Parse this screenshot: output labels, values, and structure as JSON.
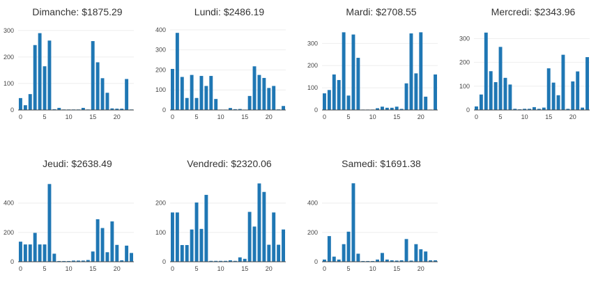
{
  "chart_data": [
    {
      "type": "bar",
      "title": "Dimanche: $1875.29",
      "x": [
        0,
        1,
        2,
        3,
        4,
        5,
        6,
        7,
        8,
        9,
        10,
        11,
        12,
        13,
        14,
        15,
        16,
        17,
        18,
        19,
        20,
        21,
        22,
        23
      ],
      "values": [
        45,
        18,
        60,
        245,
        290,
        165,
        262,
        3,
        8,
        2,
        2,
        2,
        2,
        8,
        2,
        260,
        180,
        120,
        65,
        6,
        5,
        5,
        117,
        2
      ],
      "ylim": [
        0,
        310
      ],
      "yticks": [
        0,
        100,
        200,
        300
      ],
      "xticks": [
        0,
        5,
        10,
        15,
        20
      ]
    },
    {
      "type": "bar",
      "title": "Lundi: $2486.19",
      "x": [
        0,
        1,
        2,
        3,
        4,
        5,
        6,
        7,
        8,
        9,
        10,
        11,
        12,
        13,
        14,
        15,
        16,
        17,
        18,
        19,
        20,
        21,
        22,
        23
      ],
      "values": [
        205,
        385,
        165,
        60,
        175,
        60,
        170,
        120,
        170,
        55,
        2,
        2,
        10,
        4,
        5,
        2,
        70,
        218,
        175,
        160,
        110,
        120,
        3,
        20
      ],
      "ylim": [
        0,
        410
      ],
      "yticks": [
        0,
        100,
        200,
        300,
        400
      ],
      "xticks": [
        0,
        5,
        10,
        15,
        20
      ]
    },
    {
      "type": "bar",
      "title": "Mardi: $2708.55",
      "x": [
        0,
        1,
        2,
        3,
        4,
        5,
        6,
        7,
        8,
        9,
        10,
        11,
        12,
        13,
        14,
        15,
        16,
        17,
        18,
        19,
        20,
        21,
        22,
        23
      ],
      "values": [
        75,
        90,
        160,
        135,
        350,
        65,
        340,
        235,
        2,
        2,
        2,
        8,
        15,
        10,
        10,
        15,
        5,
        120,
        345,
        165,
        350,
        60,
        2,
        160
      ],
      "ylim": [
        0,
        370
      ],
      "yticks": [
        0,
        100,
        200,
        300
      ],
      "xticks": [
        0,
        5,
        10,
        15,
        20
      ]
    },
    {
      "type": "bar",
      "title": "Mercredi: $2343.96",
      "x": [
        0,
        1,
        2,
        3,
        4,
        5,
        6,
        7,
        8,
        9,
        10,
        11,
        12,
        13,
        14,
        15,
        16,
        17,
        18,
        19,
        20,
        21,
        22,
        23
      ],
      "values": [
        15,
        65,
        325,
        163,
        117,
        265,
        135,
        107,
        5,
        3,
        5,
        5,
        12,
        5,
        10,
        175,
        115,
        62,
        232,
        5,
        120,
        162,
        10,
        222
      ],
      "ylim": [
        0,
        345
      ],
      "yticks": [
        0,
        100,
        200,
        300
      ],
      "xticks": [
        0,
        5,
        10,
        15,
        20
      ]
    },
    {
      "type": "bar",
      "title": "Jeudi: $2638.49",
      "x": [
        0,
        1,
        2,
        3,
        4,
        5,
        6,
        7,
        8,
        9,
        10,
        11,
        12,
        13,
        14,
        15,
        16,
        17,
        18,
        19,
        20,
        21,
        22,
        23
      ],
      "values": [
        137,
        118,
        118,
        197,
        118,
        118,
        530,
        55,
        5,
        5,
        5,
        8,
        8,
        8,
        12,
        70,
        290,
        230,
        65,
        275,
        115,
        10,
        110,
        60
      ],
      "ylim": [
        0,
        560
      ],
      "yticks": [
        0,
        200,
        400
      ],
      "xticks": [
        0,
        5,
        10,
        15,
        20
      ]
    },
    {
      "type": "bar",
      "title": "Vendredi: $2320.06",
      "x": [
        0,
        1,
        2,
        3,
        4,
        5,
        6,
        7,
        8,
        9,
        10,
        11,
        12,
        13,
        14,
        15,
        16,
        17,
        18,
        19,
        20,
        21,
        22,
        23
      ],
      "values": [
        168,
        168,
        57,
        57,
        110,
        202,
        112,
        228,
        3,
        3,
        3,
        3,
        5,
        3,
        15,
        10,
        170,
        120,
        267,
        238,
        58,
        168,
        58,
        110
      ],
      "ylim": [
        0,
        280
      ],
      "yticks": [
        0,
        100,
        200
      ],
      "xticks": [
        0,
        5,
        10,
        15,
        20
      ]
    },
    {
      "type": "bar",
      "title": "Samedi: $1691.38",
      "x": [
        0,
        1,
        2,
        3,
        4,
        5,
        6,
        7,
        8,
        9,
        10,
        11,
        12,
        13,
        14,
        15,
        16,
        17,
        18,
        19,
        20,
        21,
        22,
        23
      ],
      "values": [
        15,
        175,
        35,
        15,
        120,
        205,
        535,
        55,
        5,
        5,
        5,
        15,
        60,
        15,
        10,
        8,
        10,
        155,
        8,
        120,
        85,
        70,
        10,
        10
      ],
      "ylim": [
        0,
        560
      ],
      "yticks": [
        0,
        200,
        400
      ],
      "xticks": [
        0,
        5,
        10,
        15,
        20
      ]
    }
  ]
}
